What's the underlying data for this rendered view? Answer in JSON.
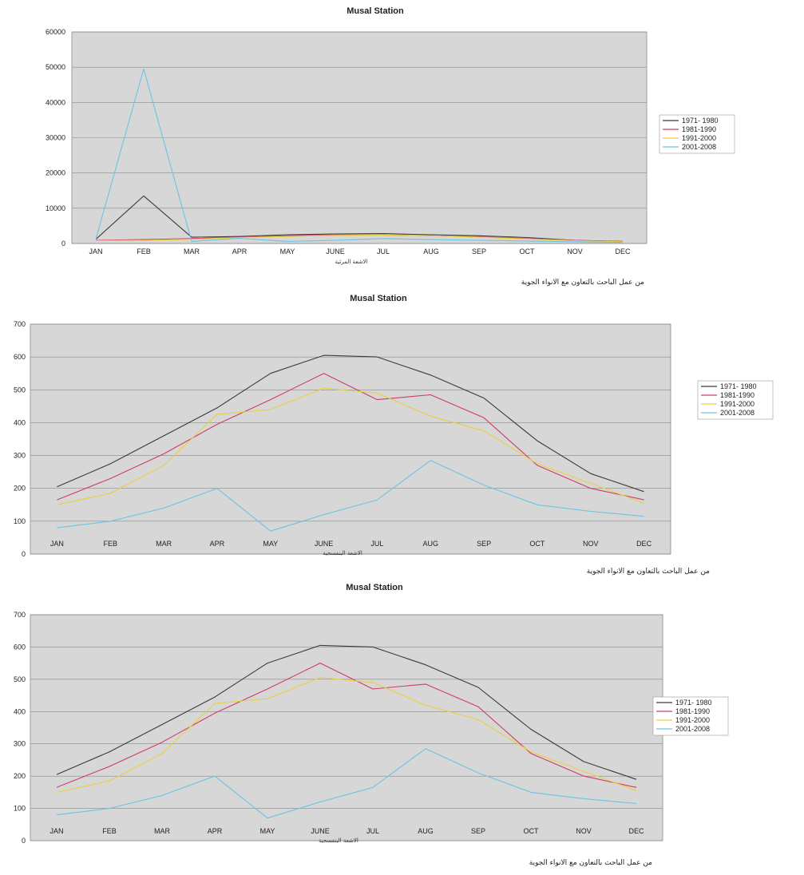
{
  "source_note": "من عمل الباحث بالتعاون مع الانواء الجوية",
  "chart_data": [
    {
      "type": "line",
      "title": "Musal Station",
      "xlabel": "الاشعة المرئية",
      "ylabel": "",
      "categories": [
        "JAN",
        "FEB",
        "MAR",
        "APR",
        "MAY",
        "JUNE",
        "JUL",
        "AUG",
        "SEP",
        "OCT",
        "NOV",
        "DEC"
      ],
      "ylim": [
        0,
        60000
      ],
      "yticks": [
        0,
        10000,
        20000,
        30000,
        40000,
        50000,
        60000
      ],
      "grid": true,
      "legend": "right",
      "series": [
        {
          "name": "1971- 1980",
          "color": "#3a3a3a",
          "values": [
            1200,
            13500,
            1800,
            2000,
            2500,
            2700,
            2800,
            2500,
            2200,
            1700,
            900,
            600
          ]
        },
        {
          "name": "1981-1990",
          "color": "#d03a6a",
          "values": [
            900,
            1100,
            1400,
            1800,
            2200,
            2400,
            2400,
            2200,
            1900,
            1400,
            900,
            600
          ]
        },
        {
          "name": "1991-2000",
          "color": "#e8d040",
          "values": [
            800,
            900,
            1200,
            1700,
            2000,
            2300,
            2400,
            2200,
            1800,
            1300,
            800,
            500
          ]
        },
        {
          "name": "2001-2008",
          "color": "#6cc3e3",
          "values": [
            1200,
            49500,
            600,
            1500,
            600,
            900,
            1400,
            1100,
            900,
            700,
            500,
            300
          ]
        }
      ]
    },
    {
      "type": "line",
      "title": "Musal Station",
      "xlabel": "الاشعة البنفسجية",
      "ylabel": "",
      "categories": [
        "JAN",
        "FEB",
        "MAR",
        "APR",
        "MAY",
        "JUNE",
        "JUL",
        "AUG",
        "SEP",
        "OCT",
        "NOV",
        "DEC"
      ],
      "ylim": [
        0,
        700
      ],
      "yticks": [
        0,
        100,
        200,
        300,
        400,
        500,
        600,
        700
      ],
      "grid": true,
      "legend": "right",
      "series": [
        {
          "name": "1971- 1980",
          "color": "#3a3a3a",
          "values": [
            205,
            275,
            360,
            445,
            550,
            605,
            600,
            545,
            475,
            345,
            245,
            190
          ]
        },
        {
          "name": "1981-1990",
          "color": "#d03a6a",
          "values": [
            165,
            230,
            305,
            395,
            470,
            550,
            470,
            485,
            415,
            270,
            200,
            165
          ]
        },
        {
          "name": "1991-2000",
          "color": "#e8d040",
          "values": [
            150,
            185,
            270,
            425,
            440,
            505,
            490,
            420,
            375,
            275,
            215,
            155
          ]
        },
        {
          "name": "2001-2008",
          "color": "#6cc3e3",
          "values": [
            80,
            100,
            140,
            200,
            70,
            120,
            165,
            285,
            210,
            150,
            130,
            115
          ]
        }
      ]
    },
    {
      "type": "line",
      "title": "Musal Station",
      "xlabel": "الاشعة البنفسجية",
      "ylabel": "",
      "categories": [
        "JAN",
        "FEB",
        "MAR",
        "APR",
        "MAY",
        "JUNE",
        "JUL",
        "AUG",
        "SEP",
        "OCT",
        "NOV",
        "DEC"
      ],
      "ylim": [
        0,
        700
      ],
      "yticks": [
        0,
        100,
        200,
        300,
        400,
        500,
        600,
        700
      ],
      "grid": true,
      "legend": "right",
      "series": [
        {
          "name": "1971- 1980",
          "color": "#3a3a3a",
          "values": [
            205,
            275,
            360,
            445,
            550,
            605,
            600,
            545,
            475,
            345,
            245,
            190
          ]
        },
        {
          "name": "1981-1990",
          "color": "#d03a6a",
          "values": [
            165,
            230,
            305,
            395,
            470,
            550,
            470,
            485,
            415,
            270,
            200,
            165
          ]
        },
        {
          "name": "1991-2000",
          "color": "#e8d040",
          "values": [
            150,
            185,
            270,
            425,
            440,
            505,
            490,
            420,
            375,
            275,
            215,
            155
          ]
        },
        {
          "name": "2001-2008",
          "color": "#6cc3e3",
          "values": [
            80,
            100,
            140,
            200,
            70,
            120,
            165,
            285,
            210,
            150,
            130,
            115
          ]
        }
      ]
    }
  ]
}
